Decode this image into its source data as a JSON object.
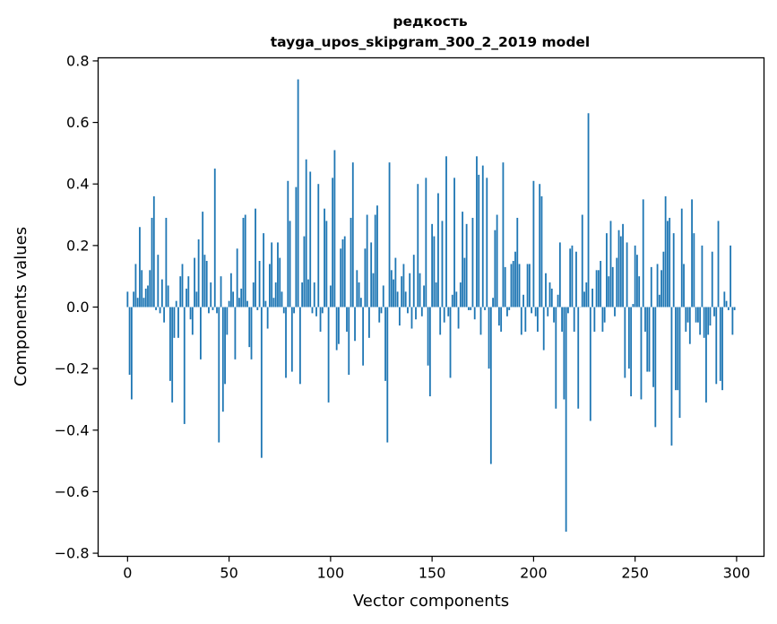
{
  "chart_data": {
    "type": "bar",
    "title": "редкость",
    "subtitle": "tayga_upos_skipgram_300_2_2019 model",
    "xlabel": "Vector components",
    "ylabel": "Components values",
    "xlim": [
      -14.5,
      313.5
    ],
    "ylim": [
      -0.81,
      0.81
    ],
    "x_ticks": [
      0,
      50,
      100,
      150,
      200,
      250,
      300
    ],
    "x_tick_labels": [
      "0",
      "50",
      "100",
      "150",
      "200",
      "250",
      "300"
    ],
    "y_ticks": [
      -0.8,
      -0.6,
      -0.4,
      -0.2,
      0.0,
      0.2,
      0.4,
      0.6,
      0.8
    ],
    "y_tick_labels": [
      "−0.8",
      "−0.6",
      "−0.4",
      "−0.2",
      "0.0",
      "0.2",
      "0.4",
      "0.6",
      "0.8"
    ],
    "bar_color": "#1f77b4",
    "grid": false,
    "x": [
      0,
      1,
      2,
      3,
      4,
      5,
      6,
      7,
      8,
      9,
      10,
      11,
      12,
      13,
      14,
      15,
      16,
      17,
      18,
      19,
      20,
      21,
      22,
      23,
      24,
      25,
      26,
      27,
      28,
      29,
      30,
      31,
      32,
      33,
      34,
      35,
      36,
      37,
      38,
      39,
      40,
      41,
      42,
      43,
      44,
      45,
      46,
      47,
      48,
      49,
      50,
      51,
      52,
      53,
      54,
      55,
      56,
      57,
      58,
      59,
      60,
      61,
      62,
      63,
      64,
      65,
      66,
      67,
      68,
      69,
      70,
      71,
      72,
      73,
      74,
      75,
      76,
      77,
      78,
      79,
      80,
      81,
      82,
      83,
      84,
      85,
      86,
      87,
      88,
      89,
      90,
      91,
      92,
      93,
      94,
      95,
      96,
      97,
      98,
      99,
      100,
      101,
      102,
      103,
      104,
      105,
      106,
      107,
      108,
      109,
      110,
      111,
      112,
      113,
      114,
      115,
      116,
      117,
      118,
      119,
      120,
      121,
      122,
      123,
      124,
      125,
      126,
      127,
      128,
      129,
      130,
      131,
      132,
      133,
      134,
      135,
      136,
      137,
      138,
      139,
      140,
      141,
      142,
      143,
      144,
      145,
      146,
      147,
      148,
      149,
      150,
      151,
      152,
      153,
      154,
      155,
      156,
      157,
      158,
      159,
      160,
      161,
      162,
      163,
      164,
      165,
      166,
      167,
      168,
      169,
      170,
      171,
      172,
      173,
      174,
      175,
      176,
      177,
      178,
      179,
      180,
      181,
      182,
      183,
      184,
      185,
      186,
      187,
      188,
      189,
      190,
      191,
      192,
      193,
      194,
      195,
      196,
      197,
      198,
      199,
      200,
      201,
      202,
      203,
      204,
      205,
      206,
      207,
      208,
      209,
      210,
      211,
      212,
      213,
      214,
      215,
      216,
      217,
      218,
      219,
      220,
      221,
      222,
      223,
      224,
      225,
      226,
      227,
      228,
      229,
      230,
      231,
      232,
      233,
      234,
      235,
      236,
      237,
      238,
      239,
      240,
      241,
      242,
      243,
      244,
      245,
      246,
      247,
      248,
      249,
      250,
      251,
      252,
      253,
      254,
      255,
      256,
      257,
      258,
      259,
      260,
      261,
      262,
      263,
      264,
      265,
      266,
      267,
      268,
      269,
      270,
      271,
      272,
      273,
      274,
      275,
      276,
      277,
      278,
      279,
      280,
      281,
      282,
      283,
      284,
      285,
      286,
      287,
      288,
      289,
      290,
      291,
      292,
      293,
      294,
      295,
      296,
      297,
      298,
      299
    ],
    "values": [
      0.05,
      -0.22,
      -0.3,
      0.05,
      0.14,
      0.03,
      0.26,
      0.12,
      0.03,
      0.06,
      0.07,
      0.12,
      0.29,
      0.36,
      -0.01,
      0.17,
      -0.02,
      0.09,
      -0.05,
      0.29,
      0.07,
      -0.24,
      -0.31,
      -0.1,
      0.02,
      -0.1,
      0.1,
      0.14,
      -0.38,
      0.06,
      0.1,
      -0.04,
      -0.09,
      0.16,
      0.05,
      0.22,
      -0.17,
      0.31,
      0.17,
      0.15,
      -0.02,
      0.08,
      -0.01,
      0.45,
      -0.02,
      -0.44,
      0.1,
      -0.34,
      -0.25,
      -0.09,
      0.02,
      0.11,
      0.05,
      -0.17,
      0.19,
      0.03,
      0.06,
      0.29,
      0.3,
      0.02,
      -0.13,
      -0.17,
      0.08,
      0.32,
      -0.01,
      0.15,
      -0.49,
      0.24,
      0.02,
      -0.07,
      0.14,
      0.21,
      0.03,
      0.08,
      0.21,
      0.16,
      0.05,
      -0.02,
      -0.23,
      0.41,
      0.28,
      -0.21,
      -0.02,
      0.39,
      0.74,
      -0.25,
      0.08,
      0.23,
      0.48,
      0.09,
      0.44,
      -0.02,
      0.08,
      -0.03,
      0.4,
      -0.08,
      -0.02,
      0.32,
      0.28,
      -0.31,
      0.07,
      0.42,
      0.51,
      -0.14,
      -0.12,
      0.19,
      0.22,
      0.23,
      -0.08,
      -0.22,
      0.29,
      0.47,
      -0.11,
      0.12,
      0.08,
      0.03,
      -0.19,
      0.19,
      0.3,
      -0.1,
      0.21,
      0.11,
      0.3,
      0.33,
      -0.05,
      -0.02,
      0.07,
      -0.24,
      -0.44,
      0.47,
      0.12,
      0.09,
      0.16,
      0.05,
      -0.06,
      0.1,
      0.14,
      0.05,
      -0.02,
      0.11,
      -0.07,
      0.17,
      -0.04,
      0.4,
      0.11,
      -0.03,
      0.07,
      0.42,
      -0.19,
      -0.29,
      0.27,
      0.23,
      0.08,
      0.37,
      -0.09,
      0.28,
      -0.05,
      0.49,
      -0.03,
      -0.23,
      0.04,
      0.42,
      0.05,
      -0.07,
      0.08,
      0.31,
      0.16,
      0.27,
      -0.01,
      -0.01,
      0.29,
      -0.04,
      0.49,
      0.43,
      -0.09,
      0.46,
      -0.01,
      0.42,
      -0.2,
      -0.51,
      0.03,
      0.25,
      0.3,
      -0.06,
      -0.08,
      0.47,
      0.13,
      -0.03,
      -0.01,
      0.14,
      0.15,
      0.18,
      0.29,
      0.14,
      -0.09,
      0.04,
      -0.08,
      0.14,
      0.14,
      -0.02,
      0.41,
      -0.03,
      -0.08,
      0.4,
      0.36,
      -0.14,
      0.11,
      -0.03,
      0.08,
      0.06,
      -0.05,
      -0.33,
      0.04,
      0.21,
      -0.08,
      -0.3,
      -0.73,
      -0.02,
      0.19,
      0.2,
      -0.08,
      0.18,
      -0.33,
      0.0,
      0.3,
      0.05,
      0.08,
      0.63,
      -0.37,
      0.06,
      -0.08,
      0.12,
      0.12,
      0.15,
      -0.08,
      -0.05,
      0.24,
      0.1,
      0.28,
      0.13,
      -0.03,
      0.16,
      0.25,
      0.23,
      0.27,
      -0.23,
      0.21,
      -0.2,
      -0.29,
      0.01,
      0.2,
      0.17,
      0.1,
      -0.3,
      0.35,
      -0.08,
      -0.21,
      -0.21,
      0.13,
      -0.26,
      -0.39,
      0.14,
      0.04,
      0.12,
      0.18,
      0.36,
      0.28,
      0.29,
      -0.45,
      0.24,
      -0.27,
      -0.27,
      -0.36,
      0.32,
      0.14,
      -0.08,
      -0.05,
      -0.12,
      0.35,
      0.24,
      -0.05,
      -0.05,
      -0.09,
      0.2,
      -0.1,
      -0.31,
      -0.09,
      -0.06,
      0.18,
      -0.03,
      -0.25,
      0.28,
      -0.24,
      -0.27,
      0.05,
      0.02,
      -0.01,
      0.2,
      -0.09,
      -0.01
    ]
  }
}
